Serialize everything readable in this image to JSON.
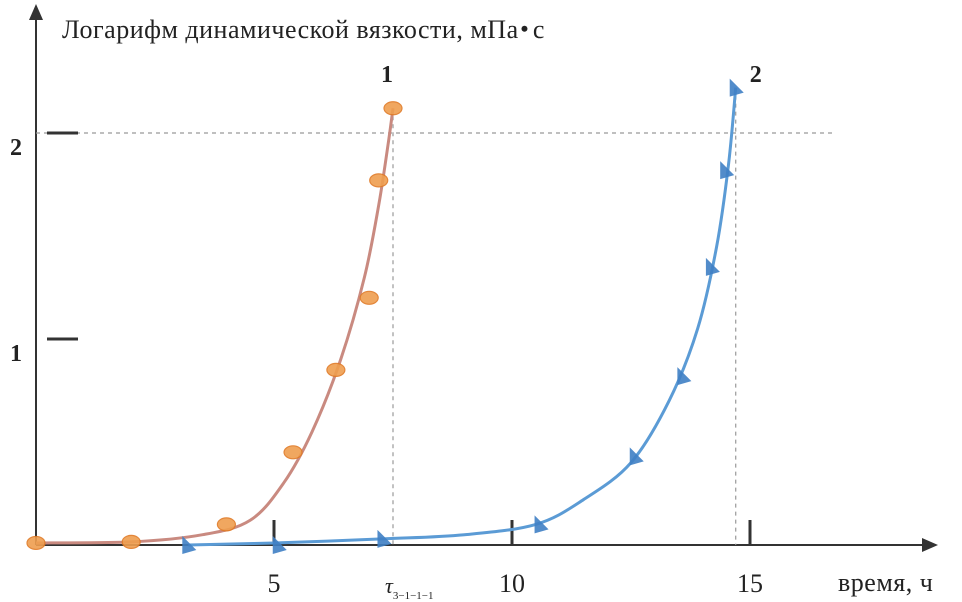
{
  "chart_data": {
    "type": "line",
    "ylabel": "Логарифм  динамической  вязкости, мПа",
    "ylabel_unit_after_dot": "с",
    "xlabel": "время, ч",
    "x_ticks": [
      {
        "value": 5,
        "label": "5"
      },
      {
        "value": 10,
        "label": "10"
      },
      {
        "value": 15,
        "label": "15"
      }
    ],
    "y_ticks": [
      {
        "value": 1,
        "label": "1"
      },
      {
        "value": 2,
        "label": "2"
      }
    ],
    "xlim": [
      0,
      17.8
    ],
    "ylim": [
      0,
      2.4
    ],
    "grid": false,
    "markers": [
      {
        "label": "τ",
        "subscript": "3−1−1−1",
        "x": 7.5
      }
    ],
    "reference_lines": {
      "y": 2,
      "x": [
        7.5,
        14.7
      ]
    },
    "series": [
      {
        "name": "1",
        "color": "#c98a80",
        "marker": "circle",
        "marker_color": "#ef9e4f",
        "points": [
          [
            0,
            0.01
          ],
          [
            2,
            0.015
          ],
          [
            4,
            0.1
          ],
          [
            5.4,
            0.45
          ],
          [
            6.3,
            0.85
          ],
          [
            7.0,
            1.2
          ],
          [
            7.2,
            1.77
          ],
          [
            7.5,
            2.12
          ]
        ],
        "curve": [
          [
            0,
            0.01
          ],
          [
            2,
            0.015
          ],
          [
            3.5,
            0.05
          ],
          [
            4.5,
            0.12
          ],
          [
            5.2,
            0.3
          ],
          [
            5.8,
            0.55
          ],
          [
            6.4,
            0.9
          ],
          [
            6.9,
            1.3
          ],
          [
            7.2,
            1.65
          ],
          [
            7.4,
            1.95
          ],
          [
            7.5,
            2.12
          ]
        ]
      },
      {
        "name": "2",
        "color": "#5b9bd5",
        "marker": "triangle",
        "marker_color": "#3f7fc4",
        "points": [
          [
            3.2,
            0
          ],
          [
            5.1,
            0
          ],
          [
            7.3,
            0.03
          ],
          [
            10.6,
            0.1
          ],
          [
            12.6,
            0.43
          ],
          [
            13.6,
            0.82
          ],
          [
            14.2,
            1.35
          ],
          [
            14.5,
            1.82
          ],
          [
            14.7,
            2.22
          ]
        ],
        "curve": [
          [
            3.2,
            0
          ],
          [
            5,
            0.01
          ],
          [
            7.3,
            0.03
          ],
          [
            9,
            0.05
          ],
          [
            10.5,
            0.1
          ],
          [
            11.5,
            0.22
          ],
          [
            12.5,
            0.4
          ],
          [
            13.3,
            0.7
          ],
          [
            13.9,
            1.05
          ],
          [
            14.3,
            1.45
          ],
          [
            14.55,
            1.85
          ],
          [
            14.7,
            2.22
          ]
        ]
      }
    ]
  }
}
